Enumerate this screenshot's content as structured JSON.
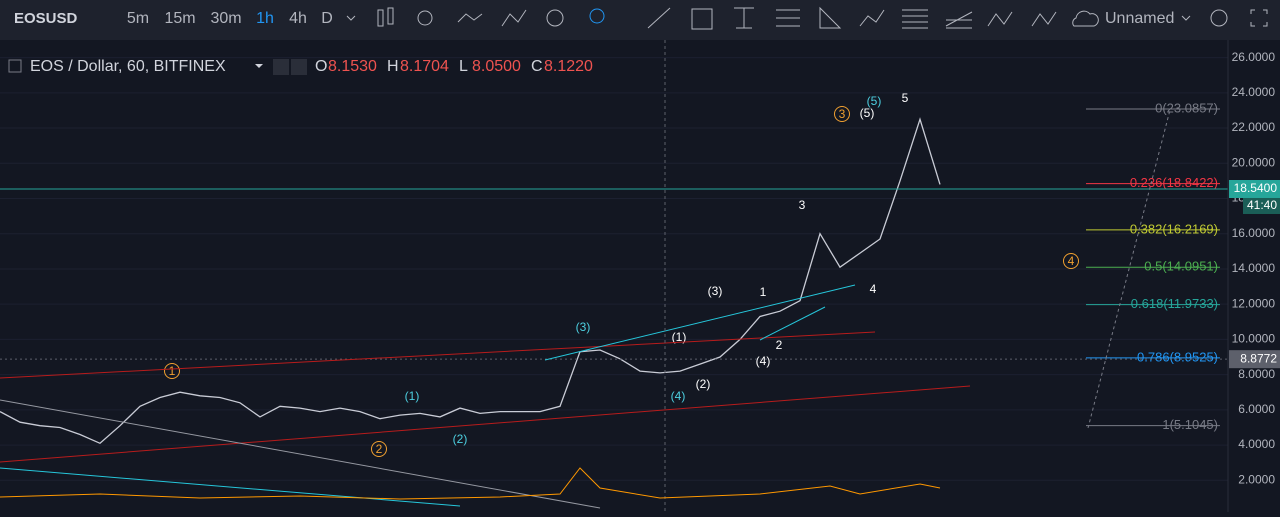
{
  "toolbar": {
    "symbol": "EOSUSD",
    "intervals": [
      "5m",
      "15m",
      "30m",
      "1h",
      "4h",
      "D"
    ],
    "active_interval": "1h",
    "layout_name": "Unnamed"
  },
  "legend": {
    "title": "EOS / Dollar, 60, BITFINEX",
    "ohlc": [
      {
        "key": "O",
        "value": "8.1530"
      },
      {
        "key": "H",
        "value": "8.1704"
      },
      {
        "key": "L",
        "value": "8.0500"
      },
      {
        "key": "C",
        "value": "8.1220"
      }
    ]
  },
  "chart_data": {
    "type": "line",
    "color": "#c9ccd6",
    "values": [
      5.9,
      5.3,
      5.1,
      5.0,
      4.6,
      4.1,
      5.1,
      6.2,
      6.7,
      7.0,
      6.8,
      6.7,
      6.4,
      5.6,
      6.2,
      6.1,
      5.9,
      6.1,
      5.9,
      5.5,
      5.7,
      5.8,
      5.6,
      6.1,
      5.8,
      5.9,
      5.9,
      5.9,
      6.2,
      9.3,
      9.4,
      8.9,
      8.2,
      8.1,
      8.2,
      8.6,
      9.0,
      10.0,
      11.3,
      11.6,
      12.2,
      16.0,
      14.1,
      14.9,
      15.7,
      19.0,
      22.5,
      18.8
    ],
    "ylim": [
      0.2,
      27
    ],
    "yticks": [
      {
        "value": 2,
        "label": "2.0000"
      },
      {
        "value": 4,
        "label": "4.0000"
      },
      {
        "value": 6,
        "label": "6.0000"
      },
      {
        "value": 8,
        "label": "8.0000"
      },
      {
        "value": 10,
        "label": "10.0000"
      },
      {
        "value": 12,
        "label": "12.0000"
      },
      {
        "value": 14,
        "label": "14.0000"
      },
      {
        "value": 16,
        "label": "16.0000"
      },
      {
        "value": 18,
        "label": "18.0000"
      },
      {
        "value": 20,
        "label": "20.0000"
      },
      {
        "value": 22,
        "label": "22.0000"
      },
      {
        "value": 24,
        "label": "24.0000"
      },
      {
        "value": 26,
        "label": "26.0000"
      }
    ],
    "grid": true,
    "price_tags": [
      {
        "value": 18.54,
        "label": "18.5400",
        "color": "#26a69a"
      },
      {
        "value": 8.8772,
        "label": "8.8772",
        "color": "#5d606b"
      }
    ],
    "countdown": "41:40",
    "fib_levels": [
      {
        "value": 23.0857,
        "label": "0(23.0857)",
        "color": "#787b86"
      },
      {
        "value": 18.8422,
        "label": "0.236(18.8422)",
        "color": "#f23645"
      },
      {
        "value": 16.2169,
        "label": "0.382(16.2169)",
        "color": "#c0ca33"
      },
      {
        "value": 14.0951,
        "label": "0.5(14.0951)",
        "color": "#4caf50"
      },
      {
        "value": 11.9733,
        "label": "0.618(11.9733)",
        "color": "#26a69a"
      },
      {
        "value": 8.9525,
        "label": "0.786(8.9525)",
        "color": "#2196f3"
      },
      {
        "value": 5.1045,
        "label": "1(5.1045)",
        "color": "#787b86"
      }
    ],
    "waves": [
      {
        "label": "1",
        "color": "#f0a030",
        "circled": true
      },
      {
        "label": "2",
        "color": "#f0a030",
        "circled": true
      },
      {
        "label": "3",
        "color": "#f0a030",
        "circled": true
      },
      {
        "label": "4",
        "color": "#f0a030",
        "circled": true
      },
      {
        "label": "(1)",
        "color": "#4dd0e1"
      },
      {
        "label": "(2)",
        "color": "#4dd0e1"
      },
      {
        "label": "(3)",
        "color": "#4dd0e1"
      },
      {
        "label": "(4)",
        "color": "#4dd0e1"
      },
      {
        "label": "(5)",
        "color": "#4dd0e1"
      },
      {
        "label": "(1)",
        "color": "#ffffff"
      },
      {
        "label": "(2)",
        "color": "#ffffff"
      },
      {
        "label": "(3)",
        "color": "#ffffff"
      },
      {
        "label": "(4)",
        "color": "#ffffff"
      },
      {
        "label": "(5)",
        "color": "#ffffff"
      },
      {
        "label": "1",
        "color": "#ffffff"
      },
      {
        "label": "2",
        "color": "#ffffff"
      },
      {
        "label": "3",
        "color": "#ffffff"
      },
      {
        "label": "4",
        "color": "#ffffff"
      },
      {
        "label": "5",
        "color": "#ffffff"
      }
    ]
  }
}
